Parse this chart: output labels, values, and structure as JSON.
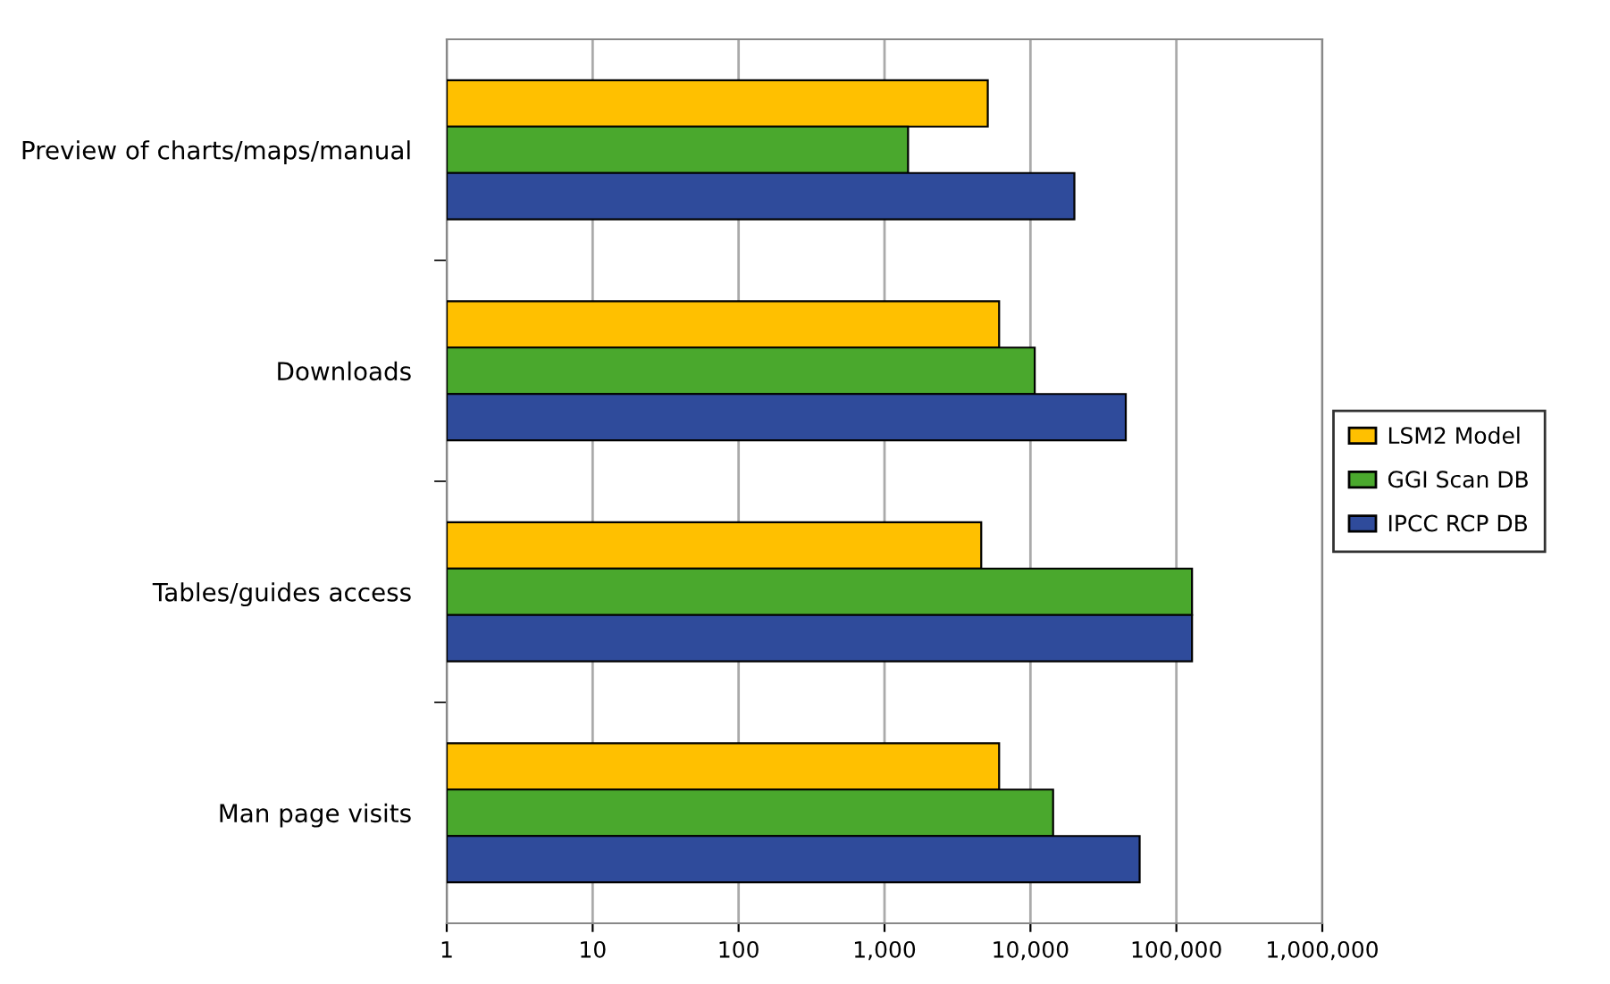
{
  "chart_data": {
    "type": "bar",
    "orientation": "horizontal",
    "log": "x",
    "categories": [
      "Preview of charts/maps/manual",
      "Downloads",
      "Tables/guides access",
      "Man page visits"
    ],
    "series": [
      {
        "name": "LSM2 Model",
        "color": "#ffc000",
        "values": [
          5100,
          6100,
          4600,
          6100
        ]
      },
      {
        "name": "GGI Scan DB",
        "color": "#4aa82d",
        "values": [
          1450,
          10700,
          128000,
          14300
        ]
      },
      {
        "name": "IPCC RCP DB",
        "color": "#2f4b9b",
        "values": [
          20000,
          45000,
          128000,
          56000
        ]
      }
    ],
    "xlim": [
      1,
      1000000
    ],
    "xticks": [
      1,
      10,
      100,
      {
        "value": 1000,
        "label": "1,000"
      },
      {
        "value": 10000,
        "label": "10,000"
      },
      {
        "value": 100000,
        "label": "100,000"
      },
      {
        "value": 1000000,
        "label": "1,000,000"
      }
    ],
    "grid": "x",
    "legend": "right"
  }
}
